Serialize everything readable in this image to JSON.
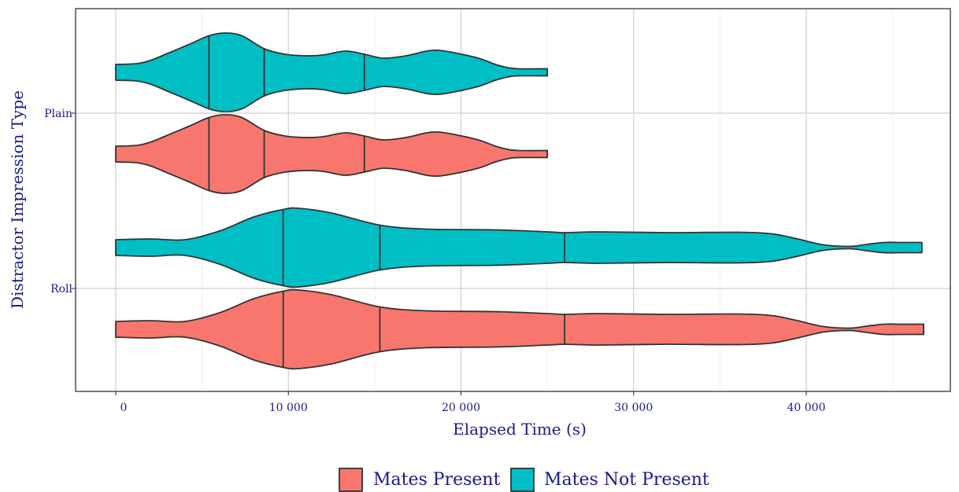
{
  "chart_data": {
    "type": "violin",
    "orientation": "horizontal",
    "xlabel": "Elapsed Time (s)",
    "ylabel": "Distractor Impression Type",
    "categories": [
      "Plain",
      "Roll"
    ],
    "x_ticks": [
      0,
      10000,
      20000,
      30000,
      40000
    ],
    "x_tick_labels": [
      "0",
      "10 000",
      "20 000",
      "30 000",
      "40 000"
    ],
    "xlim": [
      -2300,
      49000
    ],
    "grid": true,
    "legend": {
      "position": "bottom",
      "entries": [
        {
          "label": "Mates Present",
          "color": "#F8766D"
        },
        {
          "label": "Mates Not Present",
          "color": "#00BFC4"
        }
      ]
    },
    "series": [
      {
        "name": "Mates Not Present",
        "category": "Plain",
        "color": "#00BFC4",
        "range": [
          0,
          25000
        ],
        "quantiles": [
          5400,
          8600,
          14400
        ],
        "density": [
          [
            0,
            0.2
          ],
          [
            1200,
            0.22
          ],
          [
            2000,
            0.3
          ],
          [
            3000,
            0.48
          ],
          [
            4200,
            0.7
          ],
          [
            5400,
            0.93
          ],
          [
            6300,
            1.0
          ],
          [
            7300,
            0.93
          ],
          [
            8600,
            0.6
          ],
          [
            9800,
            0.46
          ],
          [
            11000,
            0.42
          ],
          [
            12000,
            0.44
          ],
          [
            13300,
            0.54
          ],
          [
            14400,
            0.46
          ],
          [
            15500,
            0.36
          ],
          [
            16800,
            0.42
          ],
          [
            18000,
            0.54
          ],
          [
            18700,
            0.56
          ],
          [
            19600,
            0.5
          ],
          [
            21000,
            0.36
          ],
          [
            22000,
            0.2
          ],
          [
            22700,
            0.12
          ],
          [
            23300,
            0.09
          ],
          [
            25000,
            0.09
          ]
        ]
      },
      {
        "name": "Mates Present",
        "category": "Plain",
        "color": "#F8766D",
        "range": [
          0,
          25000
        ],
        "quantiles": [
          5400,
          8600,
          14400
        ],
        "density": [
          [
            0,
            0.2
          ],
          [
            1200,
            0.22
          ],
          [
            2000,
            0.3
          ],
          [
            3000,
            0.48
          ],
          [
            4200,
            0.7
          ],
          [
            5400,
            0.93
          ],
          [
            6300,
            1.0
          ],
          [
            7300,
            0.93
          ],
          [
            8600,
            0.6
          ],
          [
            9800,
            0.46
          ],
          [
            11000,
            0.42
          ],
          [
            12000,
            0.44
          ],
          [
            13300,
            0.54
          ],
          [
            14400,
            0.46
          ],
          [
            15500,
            0.36
          ],
          [
            16800,
            0.42
          ],
          [
            18000,
            0.54
          ],
          [
            18700,
            0.56
          ],
          [
            19600,
            0.5
          ],
          [
            21000,
            0.36
          ],
          [
            22000,
            0.2
          ],
          [
            22700,
            0.12
          ],
          [
            23300,
            0.09
          ],
          [
            25000,
            0.09
          ]
        ]
      },
      {
        "name": "Mates Not Present",
        "category": "Roll",
        "color": "#00BFC4",
        "range": [
          0,
          46700
        ],
        "quantiles": [
          9700,
          15300,
          26000
        ],
        "density": [
          [
            0,
            0.2
          ],
          [
            2000,
            0.22
          ],
          [
            4000,
            0.2
          ],
          [
            6000,
            0.42
          ],
          [
            8000,
            0.78
          ],
          [
            9700,
            0.97
          ],
          [
            10600,
            1.0
          ],
          [
            12500,
            0.88
          ],
          [
            15300,
            0.57
          ],
          [
            18000,
            0.47
          ],
          [
            22000,
            0.45
          ],
          [
            25000,
            0.4
          ],
          [
            26000,
            0.38
          ],
          [
            28000,
            0.4
          ],
          [
            32000,
            0.38
          ],
          [
            36000,
            0.39
          ],
          [
            38000,
            0.35
          ],
          [
            39500,
            0.22
          ],
          [
            41000,
            0.07
          ],
          [
            42500,
            0.03
          ],
          [
            43500,
            0.08
          ],
          [
            44500,
            0.13
          ],
          [
            45500,
            0.13
          ],
          [
            46700,
            0.13
          ]
        ]
      },
      {
        "name": "Mates Present",
        "category": "Roll",
        "color": "#F8766D",
        "range": [
          0,
          46800
        ],
        "quantiles": [
          9700,
          15300,
          26000
        ],
        "density": [
          [
            0,
            0.2
          ],
          [
            2000,
            0.22
          ],
          [
            4000,
            0.2
          ],
          [
            6000,
            0.42
          ],
          [
            8000,
            0.78
          ],
          [
            9700,
            0.97
          ],
          [
            10600,
            1.0
          ],
          [
            12500,
            0.88
          ],
          [
            15300,
            0.57
          ],
          [
            18000,
            0.47
          ],
          [
            22000,
            0.45
          ],
          [
            25000,
            0.4
          ],
          [
            26000,
            0.38
          ],
          [
            28000,
            0.4
          ],
          [
            32000,
            0.38
          ],
          [
            36000,
            0.39
          ],
          [
            38000,
            0.35
          ],
          [
            39500,
            0.22
          ],
          [
            41000,
            0.07
          ],
          [
            42500,
            0.03
          ],
          [
            43500,
            0.08
          ],
          [
            44500,
            0.13
          ],
          [
            45500,
            0.13
          ],
          [
            46800,
            0.13
          ]
        ]
      }
    ]
  }
}
